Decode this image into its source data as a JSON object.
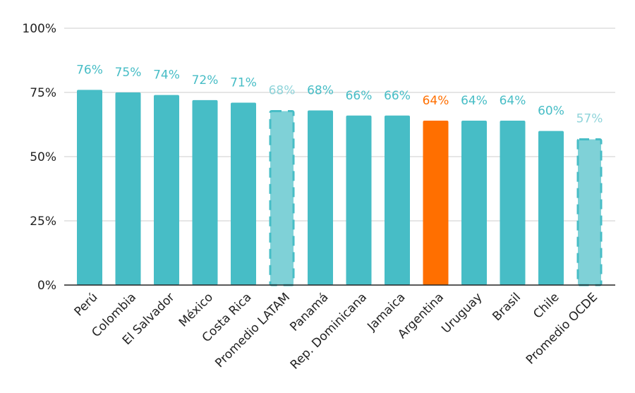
{
  "chart_data": {
    "type": "bar",
    "title": "",
    "xlabel": "",
    "ylabel": "",
    "ylim": [
      0,
      100
    ],
    "y_ticks": [
      0,
      25,
      50,
      75,
      100
    ],
    "y_tick_labels": [
      "0%",
      "25%",
      "50%",
      "75%",
      "100%"
    ],
    "grid": true,
    "categories": [
      "Perú",
      "Colombia",
      "El Salvador",
      "México",
      "Costa Rica",
      "Promedio LATAM",
      "Panamá",
      "Rep. Dominicana",
      "Jamaica",
      "Argentina",
      "Uruguay",
      "Brasil",
      "Chile",
      "Promedio OCDE"
    ],
    "values": [
      76,
      75,
      74,
      72,
      71,
      68,
      68,
      66,
      66,
      64,
      64,
      64,
      60,
      57
    ],
    "data_labels": [
      "76%",
      "75%",
      "74%",
      "72%",
      "71%",
      "68%",
      "68%",
      "66%",
      "66%",
      "64%",
      "64%",
      "64%",
      "60%",
      "57%"
    ],
    "bar_styles": [
      "normal",
      "normal",
      "normal",
      "normal",
      "normal",
      "average",
      "normal",
      "normal",
      "normal",
      "highlight",
      "normal",
      "normal",
      "normal",
      "average"
    ],
    "colors": {
      "normal": "#47bdc6",
      "highlight": "#ff6f00",
      "average_fill": "#7fd1d7",
      "average_stroke": "#47bdc6",
      "average_label": "#8fd4da",
      "grid": "#cccccc",
      "axis": "#222222"
    }
  }
}
